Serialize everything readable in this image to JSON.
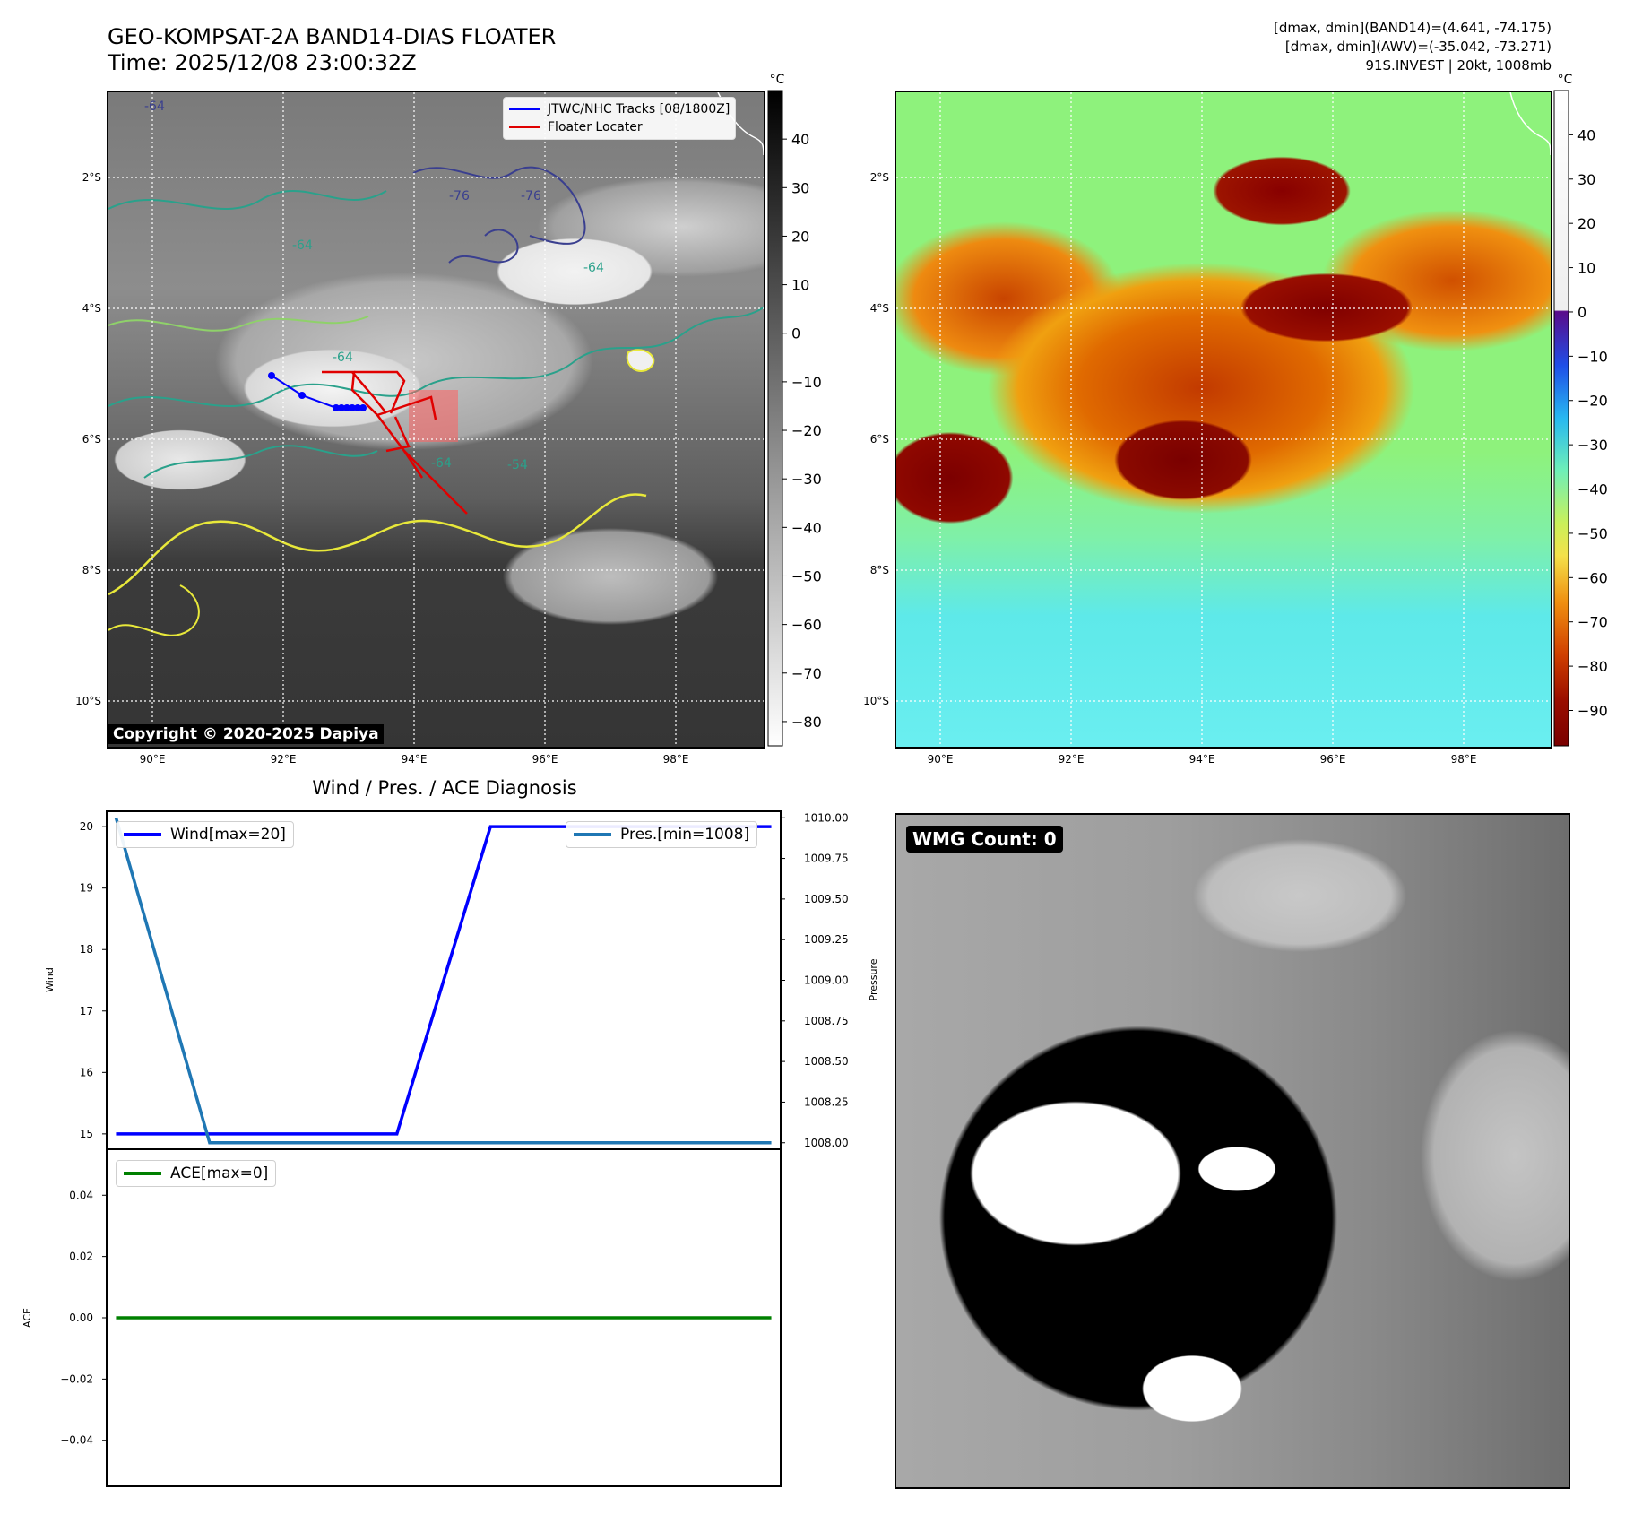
{
  "header": {
    "title": "GEO-KOMPSAT-2A BAND14-DIAS FLOATER",
    "time": "Time: 2025/12/08 23:00:32Z",
    "info_line1": "[dmax, dmin](BAND14)=(4.641, -74.175)",
    "info_line2": "[dmax, dmin](AWV)=(-35.042, -73.271)",
    "info_line3": "91S.INVEST | 20kt, 1008mb"
  },
  "map": {
    "lat_labels": [
      "2°S",
      "4°S",
      "6°S",
      "8°S",
      "10°S"
    ],
    "lon_labels": [
      "90°E",
      "92°E",
      "94°E",
      "96°E",
      "98°E"
    ],
    "copyright": "Copyright © 2020-2025 Dapiya",
    "legend_tracks": "JTWC/NHC Tracks [08/1800Z]",
    "legend_floater": "Floater Locater",
    "track_color": "#0000ff",
    "floater_color": "#e00000",
    "contour_labels": [
      "-64",
      "-76",
      "-76",
      "-64",
      "-64",
      "-64",
      "-64",
      "-54"
    ]
  },
  "colorbars": {
    "ir": {
      "unit": "°C",
      "ticks": [
        "40",
        "30",
        "20",
        "10",
        "0",
        "−10",
        "−20",
        "−30",
        "−40",
        "−50",
        "−60",
        "−70",
        "−80"
      ],
      "range": [
        50,
        -85
      ]
    },
    "awv": {
      "unit": "°C",
      "ticks": [
        "40",
        "30",
        "20",
        "10",
        "0",
        "−10",
        "−20",
        "−30",
        "−40",
        "−50",
        "−60",
        "−70",
        "−80",
        "−90"
      ],
      "range": [
        50,
        -98
      ]
    }
  },
  "diagnosis": {
    "title": "Wind / Pres. / ACE Diagnosis",
    "wind_legend": "Wind[max=20]",
    "pres_legend": "Pres.[min=1008]",
    "ace_legend": "ACE[max=0]",
    "wind_axis_label": "Wind",
    "pres_axis_label": "Pressure",
    "ace_axis_label": "ACE",
    "wind_color": "#0000ff",
    "pres_color": "#1f77b4",
    "ace_color": "#008000"
  },
  "chart_data": [
    {
      "type": "line",
      "ylabel": "Wind",
      "ylim": [
        14.75,
        20.25
      ],
      "y_ticks": [
        "20",
        "19",
        "18",
        "17",
        "16",
        "15"
      ],
      "x": [
        0,
        1,
        2,
        3,
        4,
        5,
        6,
        7
      ],
      "xlim": [
        -0.1,
        7.1
      ],
      "series": [
        {
          "name": "Wind[max=20]",
          "values": [
            15,
            15,
            15,
            15,
            20,
            20,
            20,
            20
          ]
        }
      ],
      "legend": "top-left"
    },
    {
      "type": "line",
      "ylabel": "Pressure",
      "ylim": [
        1007.96,
        1010.04
      ],
      "y_ticks": [
        "1010.00",
        "1009.75",
        "1009.50",
        "1009.25",
        "1009.00",
        "1008.75",
        "1008.50",
        "1008.25",
        "1008.00"
      ],
      "x": [
        0,
        1,
        2,
        3,
        4,
        5,
        6,
        7
      ],
      "xlim": [
        -0.1,
        7.1
      ],
      "series": [
        {
          "name": "Pres.[min=1008]",
          "values": [
            1010,
            1008,
            1008,
            1008,
            1008,
            1008,
            1008,
            1008
          ]
        }
      ],
      "legend": "top-right"
    },
    {
      "type": "line",
      "ylabel": "ACE",
      "ylim": [
        -0.055,
        0.055
      ],
      "y_ticks": [
        "0.04",
        "0.02",
        "0.00",
        "−0.02",
        "−0.04"
      ],
      "x": [
        0,
        1,
        2,
        3,
        4,
        5,
        6,
        7
      ],
      "xlim": [
        -0.1,
        7.1
      ],
      "series": [
        {
          "name": "ACE[max=0]",
          "values": [
            0,
            0,
            0,
            0,
            0,
            0,
            0,
            0
          ]
        }
      ],
      "legend": "top-left"
    }
  ],
  "wmg": {
    "badge": "WMG Count: 0"
  }
}
